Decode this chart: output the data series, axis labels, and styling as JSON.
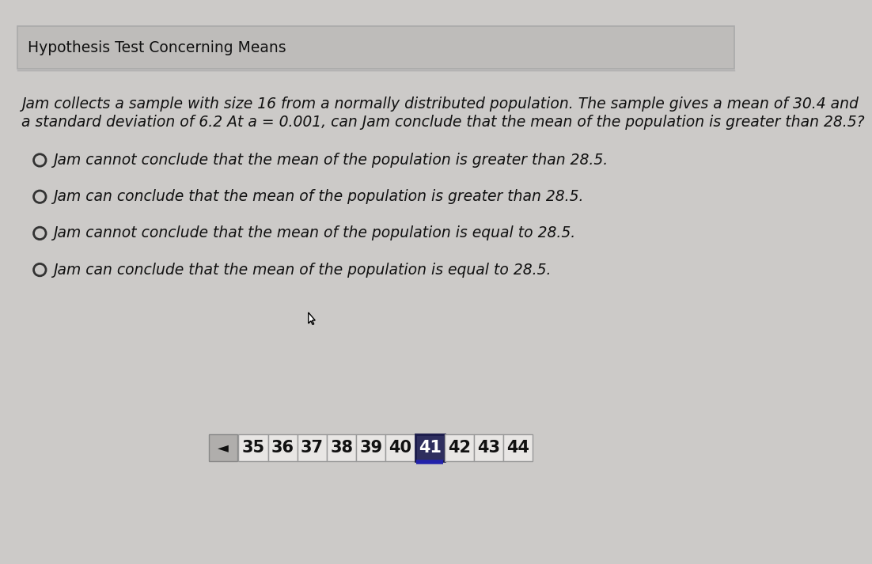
{
  "title": "Hypothesis Test Concerning Means",
  "q_line1": "Jam collects a sample with size 16 from a normally distributed population. The sample gives a mean of 30.4 and",
  "q_line2": "a standard deviation of 6.2 At a = 0.001, can Jam conclude that the mean of the population is greater than 28.5?",
  "options": [
    "Jam cannot conclude that the mean of the population is greater than 28.5.",
    "Jam can conclude that the mean of the population is greater than 28.5.",
    "Jam cannot conclude that the mean of the population is equal to 28.5.",
    "Jam can conclude that the mean of the population is equal to 28.5."
  ],
  "page_numbers": [
    35,
    36,
    37,
    38,
    39,
    40,
    41,
    42,
    43,
    44
  ],
  "active_page": 41,
  "bg_color": "#cccac8",
  "header_bg": "#bebcba",
  "text_color": "#111111",
  "nav_normal_bg": "#e8e6e4",
  "nav_active_bg": "#2e2e5e",
  "nav_active_text": "#ffffff",
  "nav_normal_text": "#111111",
  "nav_border_normal": "#999999",
  "nav_border_active": "#1a1a4a",
  "back_btn_bg": "#b0aeac",
  "back_btn_border": "#888888",
  "title_fontsize": 13.5,
  "question_fontsize": 13.5,
  "option_fontsize": 13.5,
  "nav_fontsize": 15
}
